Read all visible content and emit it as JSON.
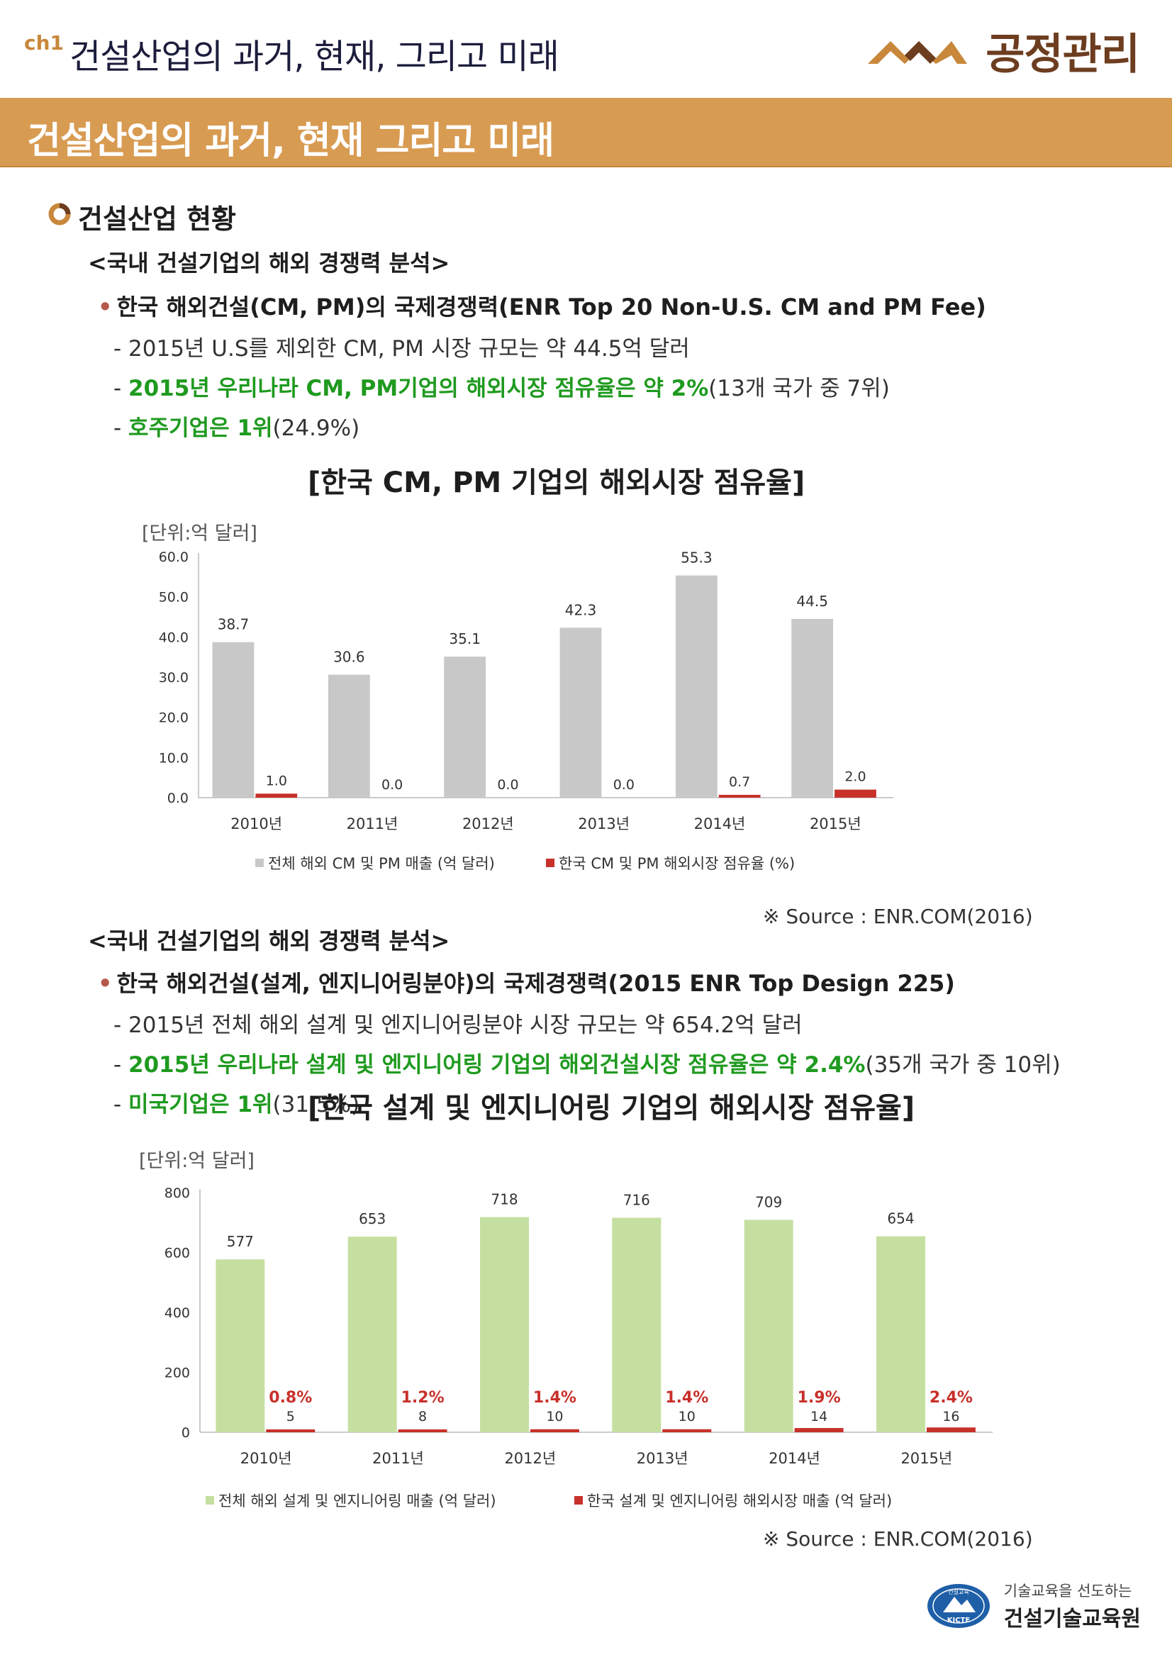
{
  "header": {
    "chapter_tag": "ch1",
    "title": "건설산업의 과거, 현재, 그리고 미래",
    "brand": "공정관리",
    "logo_icon": "mountain-chevron-icon"
  },
  "banner": {
    "title": "건설산업의 과거, 현재 그리고 미래"
  },
  "section": {
    "title": "건설산업 현황",
    "block1": {
      "subtitle": "<국내 건설기업의 해외 경쟁력 분석>",
      "bullet": "한국 해외건설(CM, PM)의 국제경쟁력(ENR Top 20 Non-U.S. CM and PM Fee)",
      "lines": [
        {
          "plain": "- 2015년 U.S를 제외한 CM, PM 시장 규모는 약 44.5억 달러",
          "green": "",
          "rest": ""
        },
        {
          "plain": "- ",
          "green": "2015년 우리나라 CM, PM기업의 해외시장 점유율은 약 2%",
          "rest": "(13개 국가 중 7위)"
        },
        {
          "plain": "- ",
          "green": "호주기업은 1위",
          "rest": "(24.9%)"
        }
      ]
    },
    "block2": {
      "subtitle": "<국내 건설기업의 해외 경쟁력 분석>",
      "bullet": "한국 해외건설(설계, 엔지니어링분야)의 국제경쟁력(2015 ENR Top Design 225)",
      "lines": [
        {
          "plain": "- 2015년 전체 해외 설계 및 엔지니어링분야 시장 규모는 약 654.2억 달러",
          "green": "",
          "rest": ""
        },
        {
          "plain": "- ",
          "green": "2015년 우리나라 설계 및 엔지니어링 기업의 해외건설시장 점유율은 약 2.4%",
          "rest": "(35개 국가 중 10위)"
        },
        {
          "plain": "- ",
          "green": "미국기업은 1위",
          "rest": "(31.5%)"
        }
      ]
    }
  },
  "chart_data": [
    {
      "type": "bar",
      "title": "[한국 CM, PM 기업의 해외시장 점유율]",
      "unit_label": "[단위:억 달러]",
      "categories": [
        "2010년",
        "2011년",
        "2012년",
        "2013년",
        "2014년",
        "2015년"
      ],
      "series": [
        {
          "name": "전체 해외 CM 및 PM 매출 (억 달러)",
          "values": [
            38.7,
            30.6,
            35.1,
            42.3,
            55.3,
            44.5
          ],
          "labels": [
            "38.7",
            "30.6",
            "35.1",
            "42.3",
            "55.3",
            "44.5"
          ],
          "color": "#c8c8c8"
        },
        {
          "name": "한국 CM 및 PM 해외시장 점유율 (%)",
          "values": [
            1.0,
            0.0,
            0.0,
            0.0,
            0.7,
            2.0
          ],
          "labels": [
            "1.0",
            "0.0",
            "0.0",
            "0.0",
            "0.7",
            "2.0"
          ],
          "color": "#c8302a"
        }
      ],
      "yticks": [
        "0.0",
        "10.0",
        "20.0",
        "30.0",
        "40.0",
        "50.0",
        "60.0"
      ],
      "ylim": [
        0,
        60
      ],
      "source": "※ Source : ENR.COM(2016)"
    },
    {
      "type": "bar",
      "title": "[한국 설계 및 엔지니어링 기업의 해외시장 점유율]",
      "unit_label": "[단위:억 달러]",
      "categories": [
        "2010년",
        "2011년",
        "2012년",
        "2013년",
        "2014년",
        "2015년"
      ],
      "series": [
        {
          "name": "전체 해외 설계 및 엔지니어링 매출 (억 달러)",
          "values": [
            577,
            653,
            718,
            716,
            709,
            654
          ],
          "labels": [
            "577",
            "653",
            "718",
            "716",
            "709",
            "654"
          ],
          "color": "#c5dfa0"
        },
        {
          "name": "한국 설계 및 엔지니어링 해외시장 매출 (억 달러)",
          "values": [
            5,
            8,
            10,
            10,
            14,
            16
          ],
          "labels": [
            "5",
            "8",
            "10",
            "10",
            "14",
            "16"
          ],
          "pct_labels": [
            "0.8%",
            "1.2%",
            "1.4%",
            "1.4%",
            "1.9%",
            "2.4%"
          ],
          "color": "#c8302a"
        }
      ],
      "yticks": [
        "0",
        "200",
        "400",
        "600",
        "800"
      ],
      "ylim": [
        0,
        800
      ],
      "source": "※ Source : ENR.COM(2016)"
    }
  ],
  "footer": {
    "tagline": "기술교육을 선도하는",
    "org": "건설기술교육원",
    "emblem_top": "건설교육",
    "emblem_bottom": "KICTE"
  }
}
